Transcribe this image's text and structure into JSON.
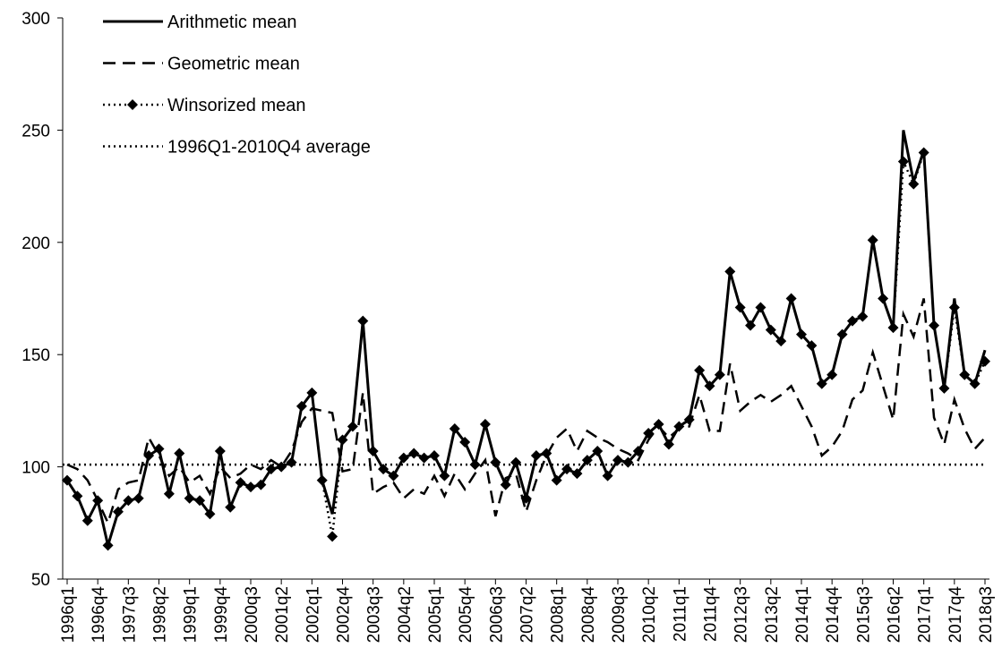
{
  "chart_data": {
    "type": "line",
    "categories": [
      "1996q1",
      null,
      null,
      "1996q4",
      null,
      null,
      "1997q3",
      null,
      null,
      "1998q2",
      null,
      null,
      "1999q1",
      null,
      null,
      "1999q4",
      null,
      null,
      "2000q3",
      null,
      null,
      "2001q2",
      null,
      null,
      "2002q1",
      null,
      null,
      "2002q4",
      null,
      null,
      "2003q3",
      null,
      null,
      "2004q2",
      null,
      null,
      "2005q1",
      null,
      null,
      "2005q4",
      null,
      null,
      "2006q3",
      null,
      null,
      "2007q2",
      null,
      null,
      "2008q1",
      null,
      null,
      "2008q4",
      null,
      null,
      "2009q3",
      null,
      null,
      "2010q2",
      null,
      null,
      "2011q1",
      null,
      null,
      "2011q4",
      null,
      null,
      "2012q3",
      null,
      null,
      "2013q2",
      null,
      null,
      "2014q1",
      null,
      null,
      "2014q4",
      null,
      null,
      "2015q3",
      null,
      null,
      "2016q2",
      null,
      null,
      "2017q1",
      null,
      null,
      "2017q4",
      null,
      null,
      "2018q3"
    ],
    "series": [
      {
        "name": "Arithmetic mean",
        "color": "#000000",
        "style": "solid",
        "values": [
          94,
          87,
          76,
          85,
          65,
          80,
          85,
          86,
          105,
          108,
          88,
          106,
          86,
          85,
          79,
          107,
          82,
          93,
          91,
          92,
          99,
          100,
          102,
          127,
          133,
          94,
          79,
          112,
          118,
          165,
          107,
          99,
          96,
          104,
          106,
          104,
          105,
          96,
          117,
          111,
          101,
          119,
          102,
          92,
          102,
          86,
          105,
          106,
          94,
          99,
          97,
          103,
          107,
          96,
          103,
          102,
          107,
          115,
          119,
          110,
          118,
          121,
          143,
          136,
          141,
          187,
          171,
          163,
          171,
          161,
          156,
          175,
          159,
          154,
          137,
          141,
          159,
          165,
          167,
          201,
          175,
          162,
          250,
          227,
          241,
          163,
          135,
          175,
          141,
          137,
          152
        ]
      },
      {
        "name": "Geometric mean",
        "color": "#000000",
        "style": "dashed",
        "values": [
          101,
          99,
          94,
          85,
          75,
          90,
          93,
          94,
          113,
          105,
          96,
          100,
          93,
          96,
          88,
          100,
          95,
          97,
          101,
          99,
          103,
          100,
          107,
          120,
          126,
          125,
          124,
          98,
          99,
          133,
          88,
          91,
          93,
          86,
          90,
          88,
          96,
          87,
          97,
          90,
          97,
          103,
          78,
          95,
          97,
          80,
          94,
          105,
          113,
          117,
          107,
          116,
          113,
          111,
          108,
          106,
          103,
          112,
          118,
          113,
          117,
          118,
          132,
          116,
          116,
          146,
          125,
          129,
          132,
          129,
          132,
          136,
          127,
          118,
          105,
          109,
          116,
          130,
          134,
          151,
          136,
          121,
          168,
          158,
          175,
          122,
          110,
          130,
          117,
          108,
          113
        ]
      },
      {
        "name": "Winsorized mean",
        "color": "#000000",
        "style": "dotted",
        "marker": "diamond",
        "values": [
          94,
          87,
          76,
          85,
          65,
          80,
          85,
          86,
          105,
          108,
          88,
          106,
          86,
          85,
          79,
          107,
          82,
          93,
          91,
          92,
          99,
          100,
          102,
          127,
          133,
          94,
          69,
          112,
          118,
          165,
          107,
          99,
          96,
          104,
          106,
          104,
          105,
          96,
          117,
          111,
          101,
          119,
          102,
          92,
          102,
          86,
          105,
          106,
          94,
          99,
          97,
          103,
          107,
          96,
          103,
          102,
          107,
          115,
          119,
          110,
          118,
          121,
          143,
          136,
          141,
          187,
          171,
          163,
          171,
          161,
          156,
          175,
          159,
          154,
          137,
          141,
          159,
          165,
          167,
          201,
          175,
          162,
          236,
          226,
          240,
          163,
          135,
          171,
          141,
          137,
          147
        ]
      },
      {
        "name": "1996Q1-2010Q4 average",
        "color": "#000000",
        "style": "dotted",
        "value": 101
      }
    ],
    "ylim": [
      50,
      300
    ],
    "yticks": [
      50,
      100,
      150,
      200,
      250,
      300
    ],
    "grid": false,
    "legend": "top-left"
  }
}
